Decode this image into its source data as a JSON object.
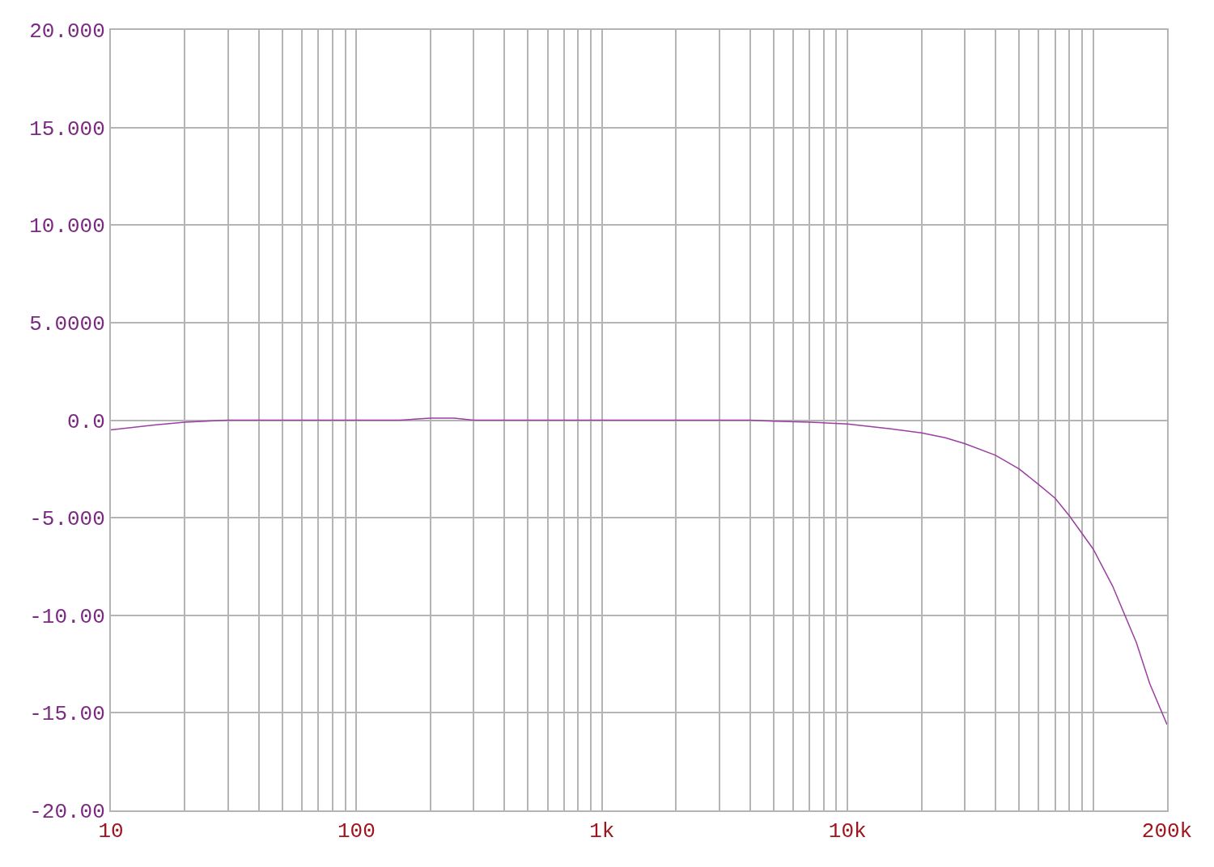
{
  "chart_data": {
    "type": "line",
    "log": "x",
    "x": [
      10,
      15,
      20,
      30,
      50,
      100,
      150,
      200,
      250,
      300,
      500,
      1000,
      2000,
      4000,
      5000,
      7000,
      10000,
      15000,
      20000,
      25000,
      30000,
      40000,
      50000,
      60000,
      70000,
      80000,
      100000,
      120000,
      150000,
      170000,
      200000
    ],
    "series": [
      {
        "color": "#9b3fa0",
        "values": [
          -0.5,
          -0.25,
          -0.1,
          0,
          0,
          0,
          0,
          0.1,
          0.1,
          0,
          0,
          0,
          0,
          0,
          -0.05,
          -0.1,
          -0.2,
          -0.45,
          -0.65,
          -0.9,
          -1.2,
          -1.8,
          -2.5,
          -3.3,
          -4.0,
          -4.9,
          -6.6,
          -8.5,
          -11.4,
          -13.5,
          -15.6
        ]
      }
    ],
    "xlim": [
      10,
      200000
    ],
    "xticks": [
      10,
      {
        "value": 20,
        "label": null
      },
      {
        "value": 30,
        "label": null
      },
      {
        "value": 40,
        "label": null
      },
      {
        "value": 50,
        "label": null
      },
      {
        "value": 60,
        "label": null
      },
      {
        "value": 70,
        "label": null
      },
      {
        "value": 80,
        "label": null
      },
      {
        "value": 90,
        "label": null
      },
      100,
      {
        "value": 200,
        "label": null
      },
      {
        "value": 300,
        "label": null
      },
      {
        "value": 400,
        "label": null
      },
      {
        "value": 500,
        "label": null
      },
      {
        "value": 600,
        "label": null
      },
      {
        "value": 700,
        "label": null
      },
      {
        "value": 800,
        "label": null
      },
      {
        "value": 900,
        "label": null
      },
      {
        "value": 1000,
        "label": "1k"
      },
      {
        "value": 2000,
        "label": null
      },
      {
        "value": 3000,
        "label": null
      },
      {
        "value": 4000,
        "label": null
      },
      {
        "value": 5000,
        "label": null
      },
      {
        "value": 6000,
        "label": null
      },
      {
        "value": 7000,
        "label": null
      },
      {
        "value": 8000,
        "label": null
      },
      {
        "value": 9000,
        "label": null
      },
      {
        "value": 10000,
        "label": "10k"
      },
      {
        "value": 20000,
        "label": null
      },
      {
        "value": 30000,
        "label": null
      },
      {
        "value": 40000,
        "label": null
      },
      {
        "value": 50000,
        "label": null
      },
      {
        "value": 60000,
        "label": null
      },
      {
        "value": 70000,
        "label": null
      },
      {
        "value": 80000,
        "label": null
      },
      {
        "value": 90000,
        "label": null
      },
      {
        "value": 100000,
        "label": null
      },
      {
        "value": 200000,
        "label": "200k"
      }
    ],
    "ylim": [
      -20,
      20
    ],
    "yticks": [
      {
        "value": 20,
        "label": "20.000"
      },
      {
        "value": 15,
        "label": "15.000"
      },
      {
        "value": 10,
        "label": "10.000"
      },
      {
        "value": 5,
        "label": "5.0000"
      },
      {
        "value": 0,
        "label": "0.0"
      },
      {
        "value": -5,
        "label": "-5.000"
      },
      {
        "value": -10,
        "label": "-10.00"
      },
      {
        "value": -15,
        "label": "-15.00"
      },
      {
        "value": -20,
        "label": "-20.00"
      }
    ],
    "grid": true,
    "line_style": "solid",
    "marker": "none"
  }
}
